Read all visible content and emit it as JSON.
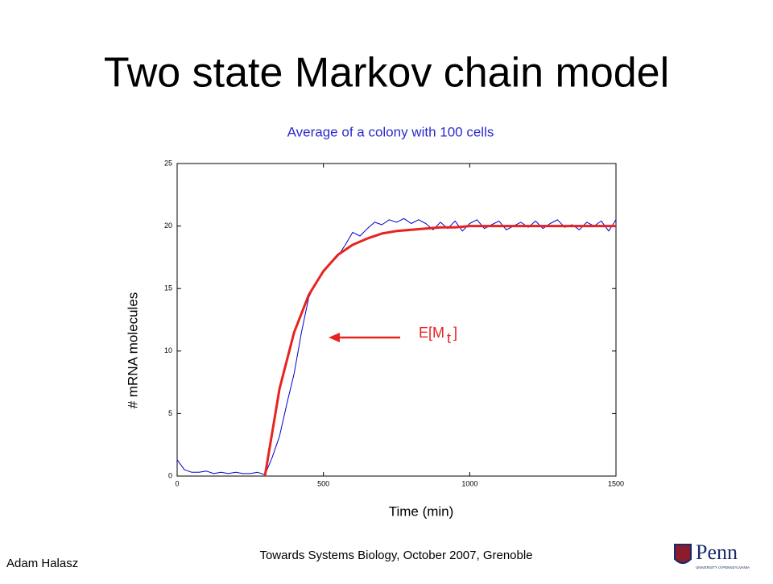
{
  "chart_data": {
    "type": "line",
    "title": "Two state Markov chain model",
    "subtitle": "Average of a colony with 100 cells",
    "xlabel": "Time (min)",
    "ylabel": "# mRNA molecules",
    "xlim": [
      0,
      1500
    ],
    "ylim": [
      0,
      25
    ],
    "xticks": [
      0,
      500,
      1000,
      1500
    ],
    "yticks": [
      0,
      5,
      10,
      15,
      20,
      25
    ],
    "series": [
      {
        "color": "#0000cc",
        "x": [
          0,
          25,
          50,
          75,
          100,
          125,
          150,
          175,
          200,
          225,
          250,
          275,
          300,
          325,
          350,
          375,
          400,
          425,
          450,
          475,
          500,
          525,
          550,
          575,
          600,
          625,
          650,
          675,
          700,
          725,
          750,
          775,
          800,
          825,
          850,
          875,
          900,
          925,
          950,
          975,
          1000,
          1025,
          1050,
          1075,
          1100,
          1125,
          1150,
          1175,
          1200,
          1225,
          1250,
          1275,
          1300,
          1325,
          1350,
          1375,
          1400,
          1425,
          1450,
          1475,
          1500
        ],
        "values": [
          1.3,
          0.5,
          0.3,
          0.3,
          0.4,
          0.2,
          0.3,
          0.2,
          0.3,
          0.2,
          0.2,
          0.3,
          0.1,
          1.5,
          3.2,
          5.8,
          8.2,
          11.5,
          14.3,
          15.5,
          16.3,
          17.0,
          17.6,
          18.5,
          19.5,
          19.2,
          19.8,
          20.3,
          20.1,
          20.5,
          20.3,
          20.6,
          20.2,
          20.5,
          20.2,
          19.7,
          20.3,
          19.8,
          20.4,
          19.6,
          20.2,
          20.5,
          19.8,
          20.1,
          20.4,
          19.7,
          20.0,
          20.3,
          19.9,
          20.4,
          19.8,
          20.2,
          20.5,
          19.9,
          20.1,
          19.7,
          20.3,
          20.0,
          20.4,
          19.6,
          20.5
        ]
      },
      {
        "color": "#e8231f",
        "x": [
          300,
          350,
          400,
          450,
          500,
          550,
          600,
          650,
          700,
          750,
          800,
          850,
          900,
          950,
          1000,
          1050,
          1100,
          1150,
          1200,
          1250,
          1300,
          1350,
          1400,
          1450,
          1500
        ],
        "values": [
          0,
          7.0,
          11.5,
          14.5,
          16.4,
          17.7,
          18.5,
          19.0,
          19.4,
          19.6,
          19.7,
          19.8,
          19.9,
          19.9,
          20.0,
          20.0,
          20.0,
          20.0,
          20.0,
          20.0,
          20.0,
          20.0,
          20.0,
          20.0,
          20.0
        ]
      }
    ],
    "annotation": {
      "main": "E[M",
      "sub": "t",
      "end": "]"
    }
  },
  "footer": {
    "author": "Adam Halasz",
    "event": "Towards Systems Biology, October 2007, Grenoble",
    "logo": "Penn",
    "logo_sub": "UNIVERSITY of PENNSYLVANIA"
  }
}
